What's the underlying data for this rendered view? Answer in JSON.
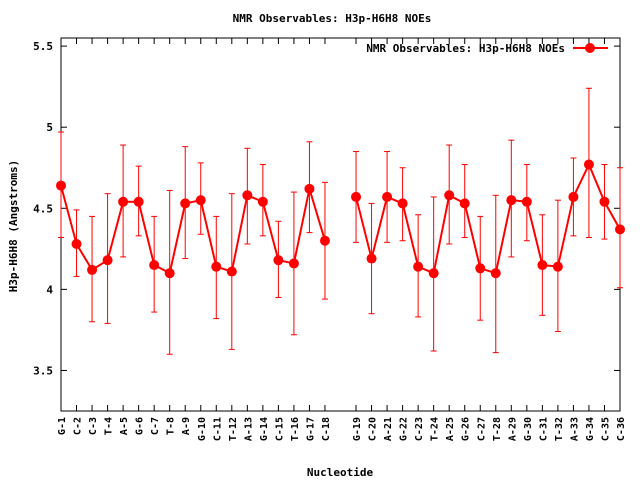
{
  "chart_data": {
    "type": "line",
    "title": "NMR Observables: H3p-H6H8 NOEs",
    "xlabel": "Nucleotide",
    "ylabel": "H3p-H6H8 (Angstroms)",
    "ylim": [
      3.25,
      5.55
    ],
    "yticks": [
      3.5,
      4,
      4.5,
      5,
      5.5
    ],
    "ytick_labels": [
      "3.5",
      "4",
      "4.5",
      "5",
      "5.5"
    ],
    "grid": false,
    "legend": {
      "position": "top-right",
      "entries": [
        "NMR Observables: H3p-H6H8 NOEs"
      ]
    },
    "colors": {
      "series": "#ff0000",
      "axis": "#000000",
      "background": "#ffffff"
    },
    "categories": [
      "G-1",
      "C-2",
      "C-3",
      "T-4",
      "A-5",
      "G-6",
      "C-7",
      "T-8",
      "A-9",
      "G-10",
      "C-11",
      "T-12",
      "A-13",
      "G-14",
      "C-15",
      "T-16",
      "G-17",
      "C-18",
      "G-19",
      "C-20",
      "A-21",
      "G-22",
      "C-23",
      "T-24",
      "A-25",
      "G-26",
      "C-27",
      "T-28",
      "A-29",
      "G-30",
      "C-31",
      "T-32",
      "A-33",
      "G-34",
      "C-35",
      "C-36"
    ],
    "x_positions": [
      1,
      2,
      3,
      4,
      5,
      6,
      7,
      8,
      9,
      10,
      11,
      12,
      13,
      14,
      15,
      16,
      17,
      18,
      20,
      21,
      22,
      23,
      24,
      25,
      26,
      27,
      28,
      29,
      30,
      31,
      32,
      33,
      34,
      35,
      36,
      37
    ],
    "xlim": [
      1,
      37
    ],
    "series": [
      {
        "name": "NMR Observables: H3p-H6H8 NOEs",
        "values": [
          4.64,
          4.28,
          4.12,
          4.18,
          4.54,
          4.54,
          4.15,
          4.1,
          4.53,
          4.55,
          4.14,
          4.11,
          4.58,
          4.54,
          4.18,
          4.16,
          4.62,
          4.3,
          4.57,
          4.19,
          4.57,
          4.53,
          4.14,
          4.1,
          4.58,
          4.53,
          4.13,
          4.1,
          4.55,
          4.54,
          4.15,
          4.14,
          4.57,
          4.77,
          4.54,
          4.37
        ],
        "err_low": [
          4.32,
          4.08,
          3.8,
          3.79,
          4.2,
          4.33,
          3.86,
          3.6,
          4.19,
          4.34,
          3.82,
          3.63,
          4.28,
          4.33,
          3.95,
          3.72,
          4.35,
          3.94,
          4.29,
          3.85,
          4.29,
          4.3,
          3.83,
          3.62,
          4.28,
          4.32,
          3.81,
          3.61,
          4.2,
          4.3,
          3.84,
          3.74,
          4.33,
          4.32,
          4.31,
          4.01
        ],
        "err_high": [
          4.97,
          4.49,
          4.45,
          4.59,
          4.89,
          4.76,
          4.45,
          4.61,
          4.88,
          4.78,
          4.45,
          4.59,
          4.87,
          4.77,
          4.42,
          4.6,
          4.91,
          4.66,
          4.85,
          4.53,
          4.85,
          4.75,
          4.46,
          4.57,
          4.89,
          4.77,
          4.45,
          4.58,
          4.92,
          4.77,
          4.46,
          4.55,
          4.81,
          5.24,
          4.77,
          4.75
        ]
      }
    ]
  }
}
